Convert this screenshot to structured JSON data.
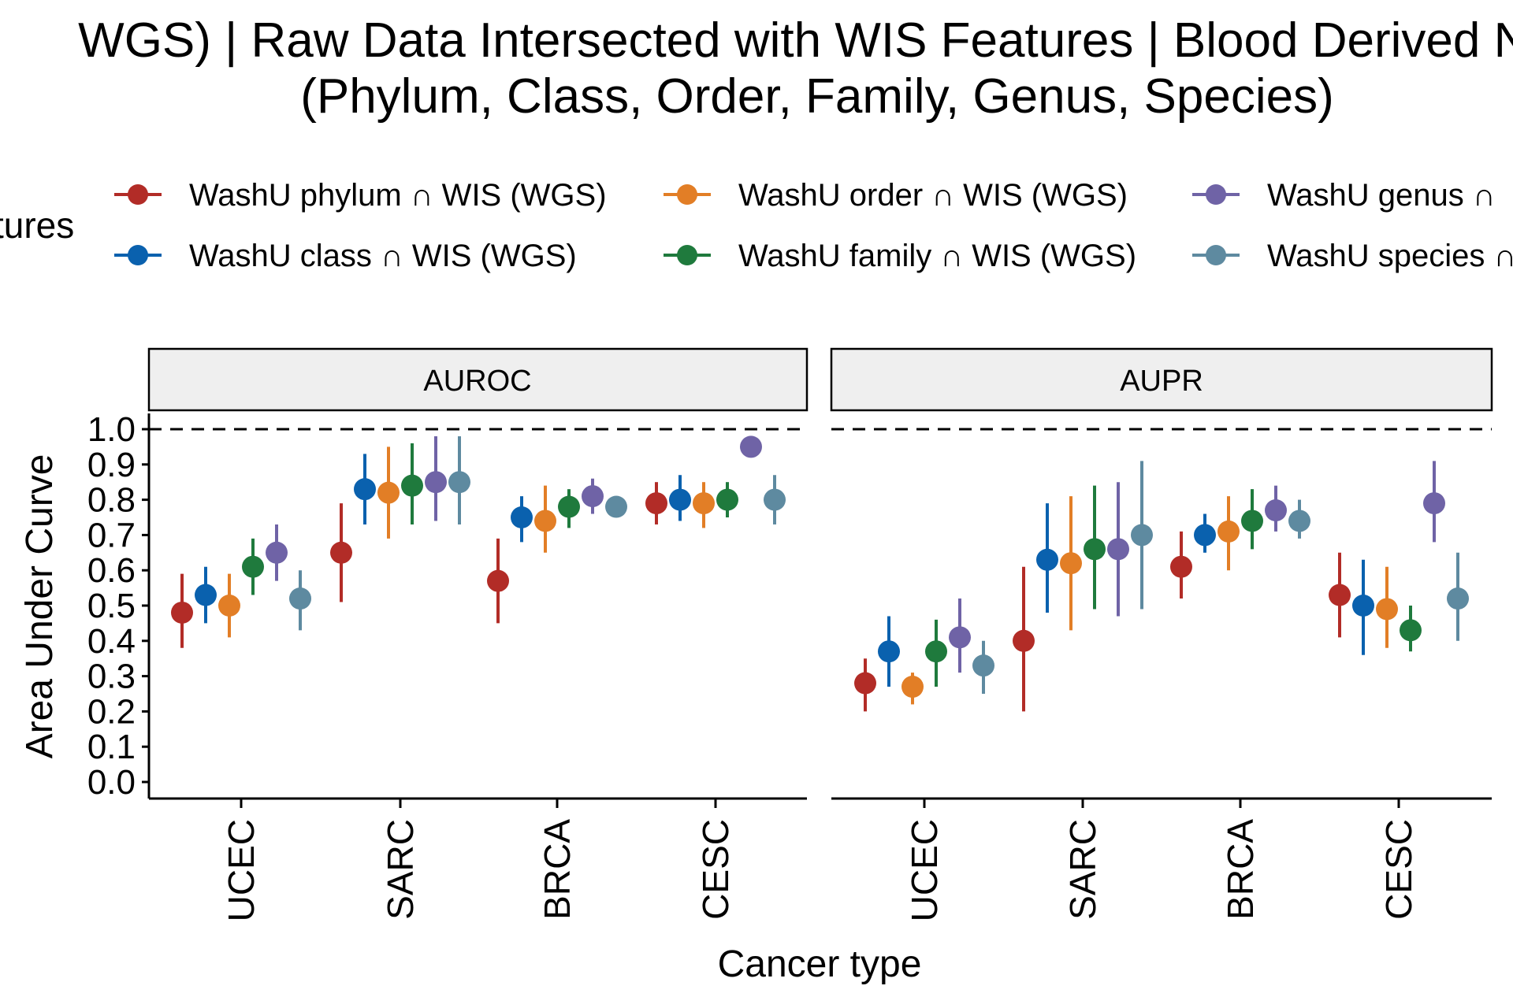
{
  "title": {
    "line1": "WGS) | Raw Data Intersected with WIS Features  | Blood Derived No",
    "line2": "(Phylum, Class, Order, Family, Genus, Species)"
  },
  "legend": {
    "title": "tures",
    "entries": [
      {
        "label": "WashU phylum ∩ WIS (WGS)",
        "color": "#B22C27"
      },
      {
        "label": "WashU class ∩ WIS (WGS)",
        "color": "#0A61AE"
      },
      {
        "label": "WashU order ∩ WIS (WGS)",
        "color": "#E27E26"
      },
      {
        "label": "WashU family ∩ WIS (WGS)",
        "color": "#1F7A3D"
      },
      {
        "label": "WashU genus ∩",
        "color": "#6F63A6"
      },
      {
        "label": "WashU species ∩",
        "color": "#5E8AA0"
      }
    ]
  },
  "chart_data": {
    "type": "scatter",
    "subtype": "point-range (dodged) with facets",
    "xlabel": "Cancer type",
    "ylabel": "Area Under Curve",
    "ylim": [
      0,
      1
    ],
    "yticks": [
      "0.0",
      "0.1",
      "0.2",
      "0.3",
      "0.4",
      "0.5",
      "0.6",
      "0.7",
      "0.8",
      "0.9",
      "1.0"
    ],
    "reference_line": {
      "y": 1.0,
      "style": "dashed"
    },
    "categories": [
      "UCEC",
      "SARC",
      "BRCA",
      "CESC"
    ],
    "series_names": [
      "WashU phylum ∩ WIS (WGS)",
      "WashU class ∩ WIS (WGS)",
      "WashU order ∩ WIS (WGS)",
      "WashU family ∩ WIS (WGS)",
      "WashU genus ∩ WIS (WGS)",
      "WashU species ∩ WIS (WGS)"
    ],
    "colors": [
      "#B22C27",
      "#0A61AE",
      "#E27E26",
      "#1F7A3D",
      "#6F63A6",
      "#5E8AA0"
    ],
    "grid": false,
    "legend_position": "top",
    "facets": [
      {
        "label": "AUROC",
        "points": [
          {
            "cat": "UCEC",
            "series": 0,
            "y": 0.48,
            "lo": 0.38,
            "hi": 0.59
          },
          {
            "cat": "UCEC",
            "series": 1,
            "y": 0.53,
            "lo": 0.45,
            "hi": 0.61
          },
          {
            "cat": "UCEC",
            "series": 2,
            "y": 0.5,
            "lo": 0.41,
            "hi": 0.59
          },
          {
            "cat": "UCEC",
            "series": 3,
            "y": 0.61,
            "lo": 0.53,
            "hi": 0.69
          },
          {
            "cat": "UCEC",
            "series": 4,
            "y": 0.65,
            "lo": 0.57,
            "hi": 0.73
          },
          {
            "cat": "UCEC",
            "series": 5,
            "y": 0.52,
            "lo": 0.43,
            "hi": 0.6
          },
          {
            "cat": "SARC",
            "series": 0,
            "y": 0.65,
            "lo": 0.51,
            "hi": 0.79
          },
          {
            "cat": "SARC",
            "series": 1,
            "y": 0.83,
            "lo": 0.73,
            "hi": 0.93
          },
          {
            "cat": "SARC",
            "series": 2,
            "y": 0.82,
            "lo": 0.69,
            "hi": 0.95
          },
          {
            "cat": "SARC",
            "series": 3,
            "y": 0.84,
            "lo": 0.73,
            "hi": 0.96
          },
          {
            "cat": "SARC",
            "series": 4,
            "y": 0.85,
            "lo": 0.74,
            "hi": 0.98
          },
          {
            "cat": "SARC",
            "series": 5,
            "y": 0.85,
            "lo": 0.73,
            "hi": 0.98
          },
          {
            "cat": "BRCA",
            "series": 0,
            "y": 0.57,
            "lo": 0.45,
            "hi": 0.69
          },
          {
            "cat": "BRCA",
            "series": 1,
            "y": 0.75,
            "lo": 0.68,
            "hi": 0.81
          },
          {
            "cat": "BRCA",
            "series": 2,
            "y": 0.74,
            "lo": 0.65,
            "hi": 0.84
          },
          {
            "cat": "BRCA",
            "series": 3,
            "y": 0.78,
            "lo": 0.72,
            "hi": 0.83
          },
          {
            "cat": "BRCA",
            "series": 4,
            "y": 0.81,
            "lo": 0.76,
            "hi": 0.86
          },
          {
            "cat": "BRCA",
            "series": 5,
            "y": 0.78,
            "lo": 0.76,
            "hi": 0.8
          },
          {
            "cat": "CESC",
            "series": 0,
            "y": 0.79,
            "lo": 0.73,
            "hi": 0.85
          },
          {
            "cat": "CESC",
            "series": 1,
            "y": 0.8,
            "lo": 0.74,
            "hi": 0.87
          },
          {
            "cat": "CESC",
            "series": 2,
            "y": 0.79,
            "lo": 0.72,
            "hi": 0.85
          },
          {
            "cat": "CESC",
            "series": 3,
            "y": 0.8,
            "lo": 0.75,
            "hi": 0.85
          },
          {
            "cat": "CESC",
            "series": 4,
            "y": 0.95,
            "lo": 0.95,
            "hi": 0.95
          },
          {
            "cat": "CESC",
            "series": 5,
            "y": 0.8,
            "lo": 0.73,
            "hi": 0.87
          }
        ]
      },
      {
        "label": "AUPR",
        "points": [
          {
            "cat": "UCEC",
            "series": 0,
            "y": 0.28,
            "lo": 0.2,
            "hi": 0.35
          },
          {
            "cat": "UCEC",
            "series": 1,
            "y": 0.37,
            "lo": 0.27,
            "hi": 0.47
          },
          {
            "cat": "UCEC",
            "series": 2,
            "y": 0.27,
            "lo": 0.22,
            "hi": 0.31
          },
          {
            "cat": "UCEC",
            "series": 3,
            "y": 0.37,
            "lo": 0.27,
            "hi": 0.46
          },
          {
            "cat": "UCEC",
            "series": 4,
            "y": 0.41,
            "lo": 0.31,
            "hi": 0.52
          },
          {
            "cat": "UCEC",
            "series": 5,
            "y": 0.33,
            "lo": 0.25,
            "hi": 0.4
          },
          {
            "cat": "SARC",
            "series": 0,
            "y": 0.4,
            "lo": 0.2,
            "hi": 0.61
          },
          {
            "cat": "SARC",
            "series": 1,
            "y": 0.63,
            "lo": 0.48,
            "hi": 0.79
          },
          {
            "cat": "SARC",
            "series": 2,
            "y": 0.62,
            "lo": 0.43,
            "hi": 0.81
          },
          {
            "cat": "SARC",
            "series": 3,
            "y": 0.66,
            "lo": 0.49,
            "hi": 0.84
          },
          {
            "cat": "SARC",
            "series": 4,
            "y": 0.66,
            "lo": 0.47,
            "hi": 0.85
          },
          {
            "cat": "SARC",
            "series": 5,
            "y": 0.7,
            "lo": 0.49,
            "hi": 0.91
          },
          {
            "cat": "BRCA",
            "series": 0,
            "y": 0.61,
            "lo": 0.52,
            "hi": 0.71
          },
          {
            "cat": "BRCA",
            "series": 1,
            "y": 0.7,
            "lo": 0.65,
            "hi": 0.76
          },
          {
            "cat": "BRCA",
            "series": 2,
            "y": 0.71,
            "lo": 0.6,
            "hi": 0.81
          },
          {
            "cat": "BRCA",
            "series": 3,
            "y": 0.74,
            "lo": 0.66,
            "hi": 0.83
          },
          {
            "cat": "BRCA",
            "series": 4,
            "y": 0.77,
            "lo": 0.71,
            "hi": 0.84
          },
          {
            "cat": "BRCA",
            "series": 5,
            "y": 0.74,
            "lo": 0.69,
            "hi": 0.8
          },
          {
            "cat": "CESC",
            "series": 0,
            "y": 0.53,
            "lo": 0.41,
            "hi": 0.65
          },
          {
            "cat": "CESC",
            "series": 1,
            "y": 0.5,
            "lo": 0.36,
            "hi": 0.63
          },
          {
            "cat": "CESC",
            "series": 2,
            "y": 0.49,
            "lo": 0.38,
            "hi": 0.61
          },
          {
            "cat": "CESC",
            "series": 3,
            "y": 0.43,
            "lo": 0.37,
            "hi": 0.5
          },
          {
            "cat": "CESC",
            "series": 4,
            "y": 0.79,
            "lo": 0.68,
            "hi": 0.91
          },
          {
            "cat": "CESC",
            "series": 5,
            "y": 0.52,
            "lo": 0.4,
            "hi": 0.65
          }
        ]
      }
    ]
  }
}
